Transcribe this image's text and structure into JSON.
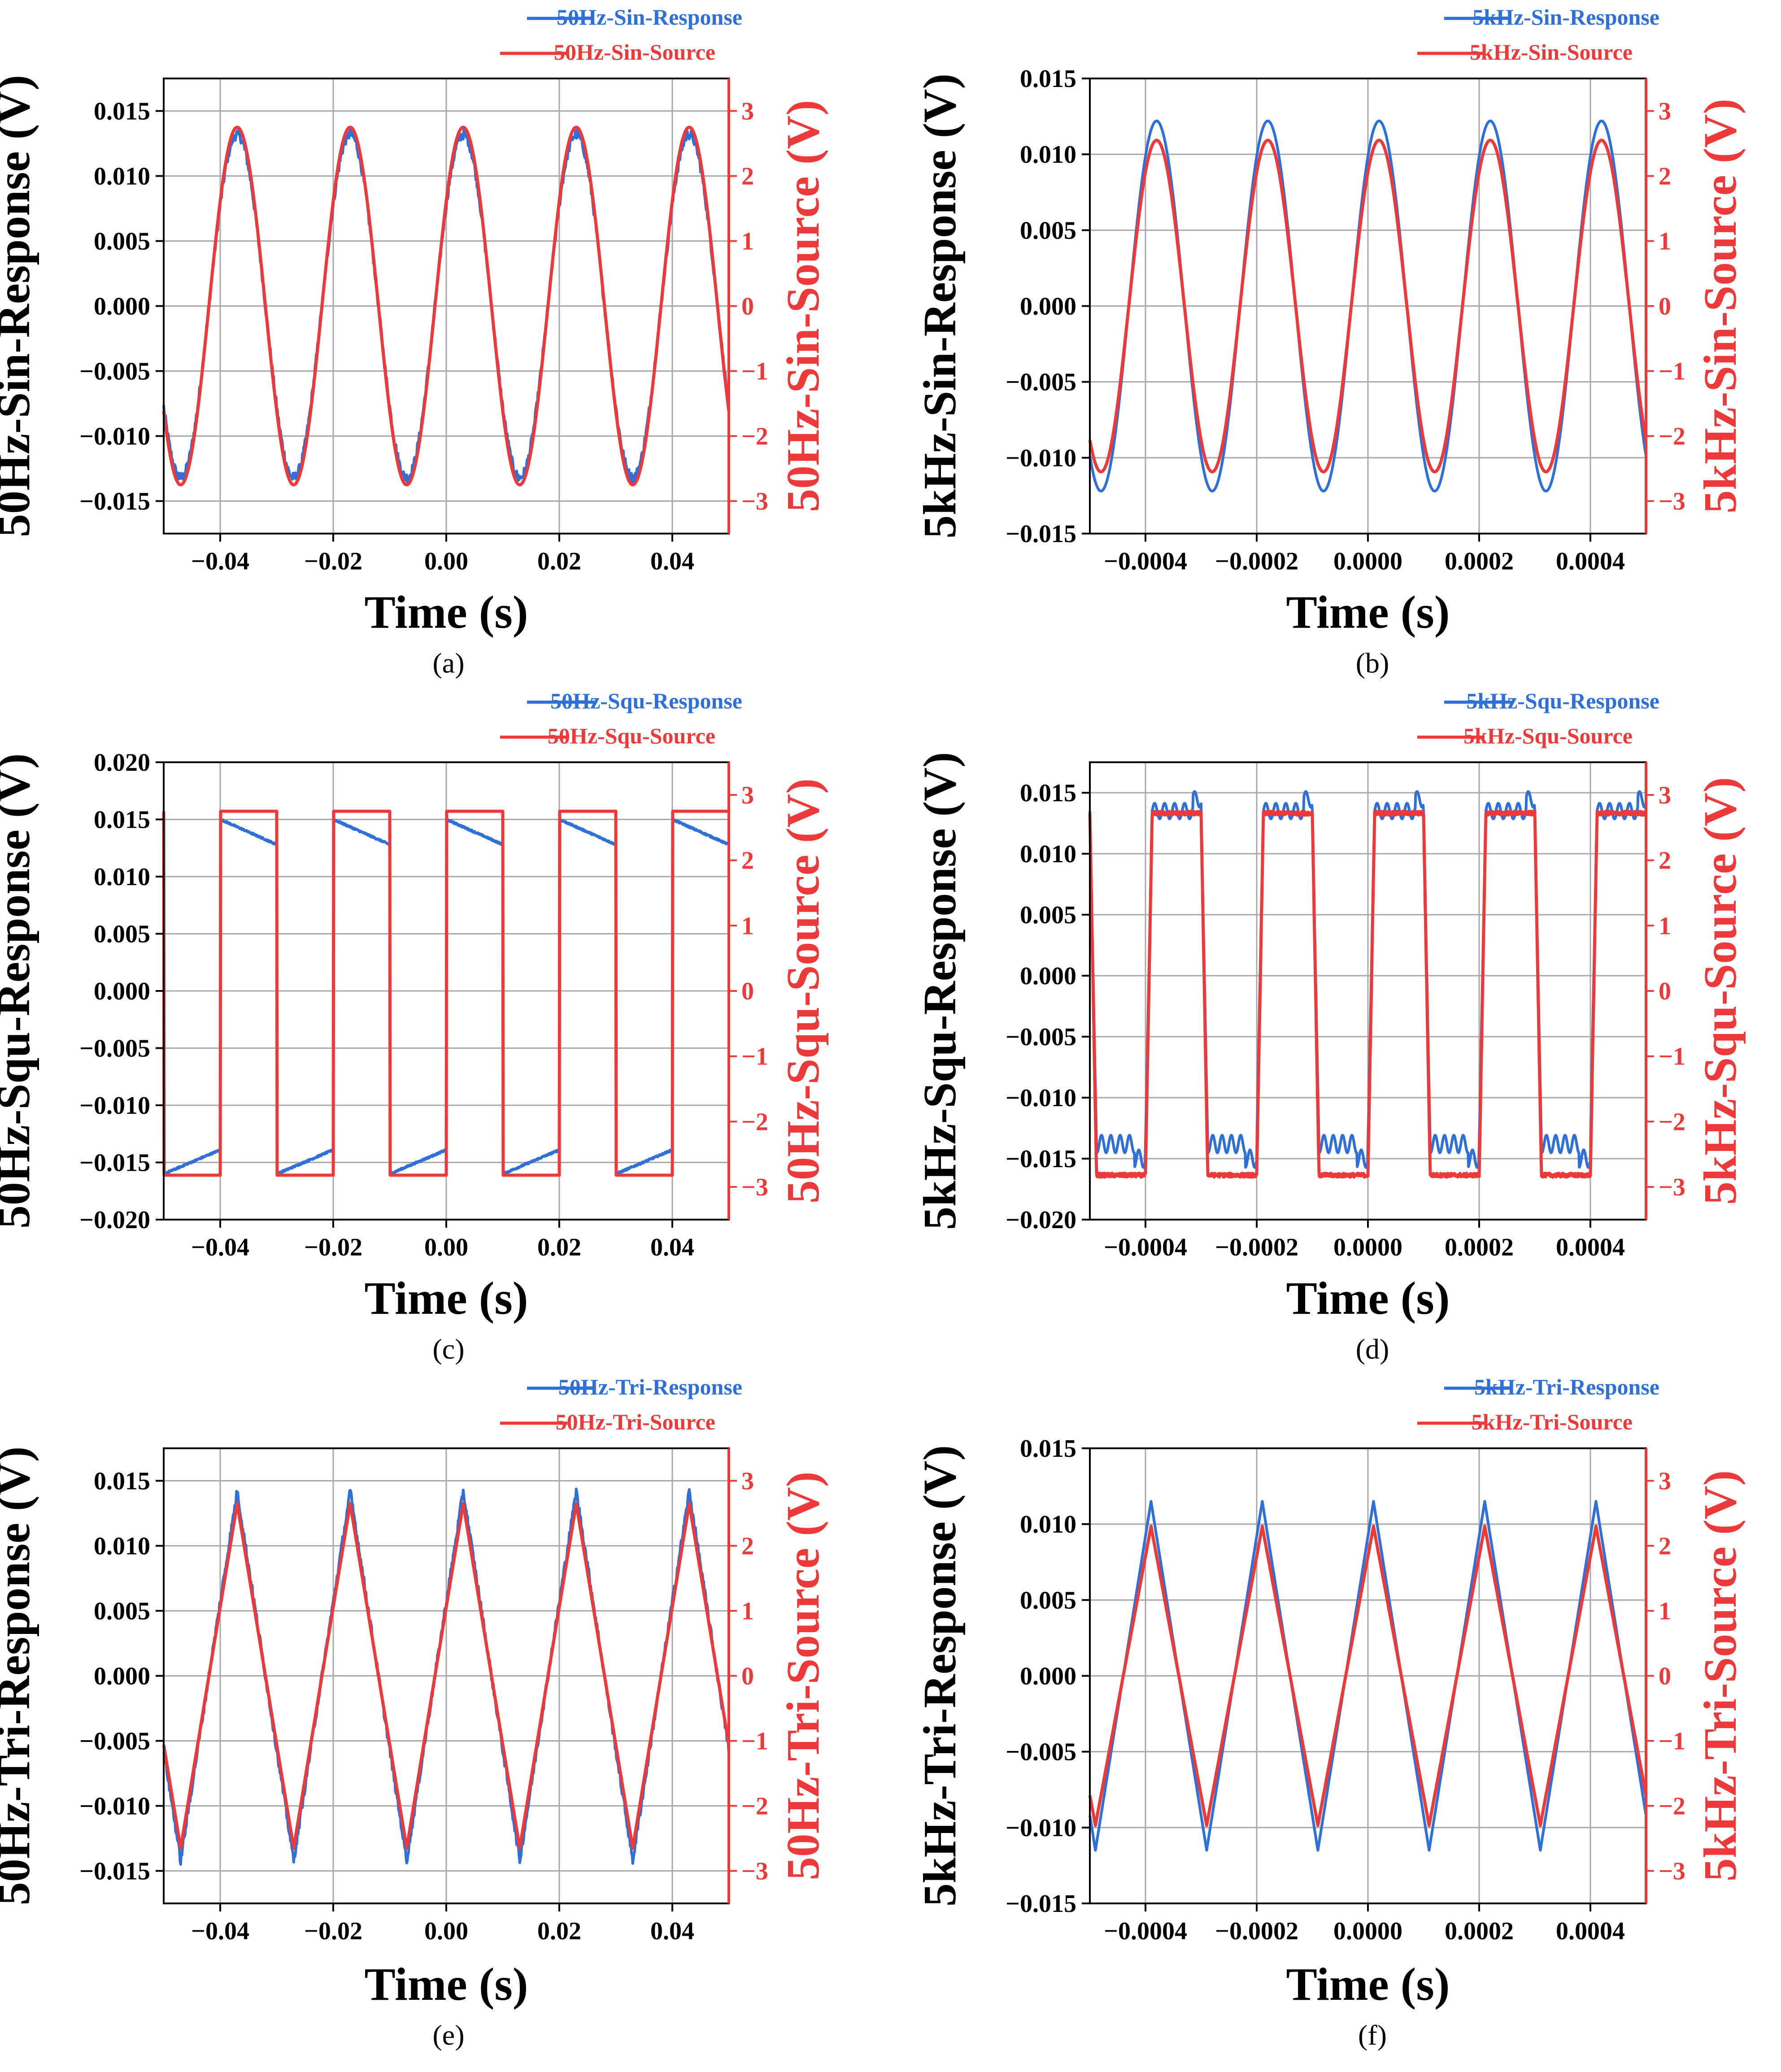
{
  "figure": {
    "colors": {
      "response": "#2e6fd8",
      "source": "#ec3a3a",
      "grid": "#a8a8a8",
      "axis": "#000000"
    }
  },
  "chart_data": [
    {
      "type": "line",
      "panel": "(a)",
      "waveform": "sine",
      "xlabel": "Time (s)",
      "ylabel": "50Hz-Sin-Response (V)",
      "y2label": "50Hz-Sin-Source (V)",
      "xlim": [
        -0.05,
        0.05
      ],
      "xticks": [
        -0.04,
        -0.02,
        0.0,
        0.02,
        0.04
      ],
      "xtick_labels": [
        "−0.04",
        "−0.02",
        "0.00",
        "0.02",
        "0.04"
      ],
      "ylim": [
        -0.0175,
        0.0175
      ],
      "yticks": [
        0.015,
        0.01,
        0.005,
        0.0,
        -0.005,
        -0.01,
        -0.015
      ],
      "ytick_labels": [
        "0.015",
        "0.010",
        "0.005",
        "0.000",
        "−0.005",
        "−0.010",
        "−0.015"
      ],
      "y2lim": [
        -3.5,
        3.5
      ],
      "y2ticks": [
        3,
        2,
        1,
        0,
        -1,
        -2,
        -3
      ],
      "y2tick_labels": [
        "3",
        "2",
        "1",
        "0",
        "−1",
        "−2",
        "−3"
      ],
      "legend_position": "top-right",
      "series": [
        {
          "name": "50Hz-Sin-Response",
          "axis": "left",
          "amplitude": 0.0132,
          "peak_times": [
            -0.037,
            -0.017,
            0.003,
            0.023,
            0.043
          ],
          "period": 0.02
        },
        {
          "name": "50Hz-Sin-Source",
          "axis": "right",
          "amplitude": 2.75,
          "peak_times": [
            -0.037,
            -0.017,
            0.003,
            0.023,
            0.043
          ],
          "period": 0.02
        }
      ]
    },
    {
      "type": "line",
      "panel": "(b)",
      "waveform": "sine",
      "xlabel": "Time (s)",
      "ylabel": "5kHz-Sin-Response (V)",
      "y2label": "5kHz-Sin-Source (V)",
      "xlim": [
        -0.0005,
        0.0005
      ],
      "xticks": [
        -0.0004,
        -0.0002,
        0.0,
        0.0002,
        0.0004
      ],
      "xtick_labels": [
        "−0.0004",
        "−0.0002",
        "0.0000",
        "0.0002",
        "0.0004"
      ],
      "ylim": [
        -0.015,
        0.015
      ],
      "yticks": [
        0.015,
        0.01,
        0.005,
        0.0,
        -0.005,
        -0.01,
        -0.015
      ],
      "ytick_labels": [
        "0.015",
        "0.010",
        "0.005",
        "0.000",
        "−0.005",
        "−0.010",
        "−0.015"
      ],
      "y2lim": [
        -3.5,
        3.5
      ],
      "y2ticks": [
        3,
        2,
        1,
        0,
        -1,
        -2,
        -3
      ],
      "y2tick_labels": [
        "3",
        "2",
        "1",
        "0",
        "−1",
        "−2",
        "−3"
      ],
      "legend_position": "top-right",
      "series": [
        {
          "name": "5kHz-Sin-Response",
          "axis": "left",
          "amplitude": 0.0122,
          "peak_times": [
            -0.00038,
            -0.00018,
            2e-05,
            0.00022,
            0.00042
          ],
          "period": 0.0002
        },
        {
          "name": "5kHz-Sin-Source",
          "axis": "right",
          "amplitude": 2.55,
          "peak_times": [
            -0.00038,
            -0.00018,
            2e-05,
            0.00022,
            0.00042
          ],
          "period": 0.0002
        }
      ]
    },
    {
      "type": "line",
      "panel": "(c)",
      "waveform": "square",
      "xlabel": "Time (s)",
      "ylabel": "50Hz-Squ-Response (V)",
      "y2label": "50Hz-Squ-Source (V)",
      "xlim": [
        -0.05,
        0.05
      ],
      "xticks": [
        -0.04,
        -0.02,
        0.0,
        0.02,
        0.04
      ],
      "xtick_labels": [
        "−0.04",
        "−0.02",
        "0.00",
        "0.02",
        "0.04"
      ],
      "ylim": [
        -0.02,
        0.02
      ],
      "yticks": [
        0.02,
        0.015,
        0.01,
        0.005,
        0.0,
        -0.005,
        -0.01,
        -0.015,
        -0.02
      ],
      "ytick_labels": [
        "0.020",
        "0.015",
        "0.010",
        "0.005",
        "0.000",
        "−0.005",
        "−0.010",
        "−0.015",
        "−0.020"
      ],
      "y2lim": [
        -3.5,
        3.5
      ],
      "y2ticks": [
        3,
        2,
        1,
        0,
        -1,
        -2,
        -3
      ],
      "y2tick_labels": [
        "3",
        "2",
        "1",
        "0",
        "−1",
        "−2",
        "−3"
      ],
      "legend_position": "top-right",
      "series": [
        {
          "name": "50Hz-Squ-Response",
          "axis": "left",
          "high_start": 0.015,
          "high_end": 0.0128,
          "low_start": -0.016,
          "low_end": -0.0139,
          "period": 0.02
        },
        {
          "name": "50Hz-Squ-Source",
          "axis": "right",
          "high": 2.75,
          "low": -2.82,
          "rising_edges": [
            -0.04,
            -0.02,
            0.0,
            0.02,
            0.04
          ],
          "falling_edges": [
            -0.03,
            -0.01,
            0.01,
            0.03
          ],
          "period": 0.02
        }
      ]
    },
    {
      "type": "line",
      "panel": "(d)",
      "waveform": "square",
      "xlabel": "Time (s)",
      "ylabel": "5kHz-Squ-Response (V)",
      "y2label": "5kHz-Squ-Source (V)",
      "xlim": [
        -0.0005,
        0.0005
      ],
      "xticks": [
        -0.0004,
        -0.0002,
        0.0,
        0.0002,
        0.0004
      ],
      "xtick_labels": [
        "−0.0004",
        "−0.0002",
        "0.0000",
        "0.0002",
        "0.0004"
      ],
      "ylim": [
        -0.02,
        0.0175
      ],
      "yticks": [
        0.015,
        0.01,
        0.005,
        0.0,
        -0.005,
        -0.01,
        -0.015,
        -0.02
      ],
      "ytick_labels": [
        "0.015",
        "0.010",
        "0.005",
        "0.000",
        "−0.005",
        "−0.010",
        "−0.015",
        "−0.020"
      ],
      "y2lim": [
        -3.5,
        3.5
      ],
      "y2ticks": [
        3,
        2,
        1,
        0,
        -1,
        -2,
        -3
      ],
      "y2tick_labels": [
        "3",
        "2",
        "1",
        "0",
        "−1",
        "−2",
        "−3"
      ],
      "legend_position": "top-right",
      "series": [
        {
          "name": "5kHz-Squ-Response",
          "axis": "left",
          "high": 0.0135,
          "low": -0.0138,
          "ripple": 0.0008,
          "period": 0.0002
        },
        {
          "name": "5kHz-Squ-Source",
          "axis": "right",
          "high": 2.72,
          "low": -2.82,
          "rising_edges": [
            -0.0004,
            -0.0002,
            0.0,
            0.0002,
            0.0004
          ],
          "period": 0.0002
        }
      ]
    },
    {
      "type": "line",
      "panel": "(e)",
      "waveform": "triangle",
      "xlabel": "Time (s)",
      "ylabel": "50Hz-Tri-Response (V)",
      "y2label": "50Hz-Tri-Source (V)",
      "xlim": [
        -0.05,
        0.05
      ],
      "xticks": [
        -0.04,
        -0.02,
        0.0,
        0.02,
        0.04
      ],
      "xtick_labels": [
        "−0.04",
        "−0.02",
        "0.00",
        "0.02",
        "0.04"
      ],
      "ylim": [
        -0.0175,
        0.0175
      ],
      "yticks": [
        0.015,
        0.01,
        0.005,
        0.0,
        -0.005,
        -0.01,
        -0.015
      ],
      "ytick_labels": [
        "0.015",
        "0.010",
        "0.005",
        "0.000",
        "−0.005",
        "−0.010",
        "−0.015"
      ],
      "y2lim": [
        -3.5,
        3.5
      ],
      "y2ticks": [
        3,
        2,
        1,
        0,
        -1,
        -2,
        -3
      ],
      "y2tick_labels": [
        "3",
        "2",
        "1",
        "0",
        "−1",
        "−2",
        "−3"
      ],
      "legend_position": "top-right",
      "series": [
        {
          "name": "50Hz-Tri-Response",
          "axis": "left",
          "amplitude": 0.0142,
          "peak_times": [
            -0.037,
            -0.017,
            0.003,
            0.023,
            0.043
          ],
          "period": 0.02
        },
        {
          "name": "50Hz-Tri-Source",
          "axis": "right",
          "amplitude": 2.65,
          "peak_times": [
            -0.037,
            -0.017,
            0.003,
            0.023,
            0.043
          ],
          "period": 0.02
        }
      ]
    },
    {
      "type": "line",
      "panel": "(f)",
      "waveform": "triangle",
      "xlabel": "Time (s)",
      "ylabel": "5kHz-Tri-Response (V)",
      "y2label": "5kHz-Tri-Source (V)",
      "xlim": [
        -0.0005,
        0.0005
      ],
      "xticks": [
        -0.0004,
        -0.0002,
        0.0,
        0.0002,
        0.0004
      ],
      "xtick_labels": [
        "−0.0004",
        "−0.0002",
        "0.0000",
        "0.0002",
        "0.0004"
      ],
      "ylim": [
        -0.015,
        0.015
      ],
      "yticks": [
        0.015,
        0.01,
        0.005,
        0.0,
        -0.005,
        -0.01,
        -0.015
      ],
      "ytick_labels": [
        "0.015",
        "0.010",
        "0.005",
        "0.000",
        "−0.005",
        "−0.010",
        "−0.015"
      ],
      "y2lim": [
        -3.5,
        3.5
      ],
      "y2ticks": [
        3,
        2,
        1,
        0,
        -1,
        -2,
        -3
      ],
      "y2tick_labels": [
        "3",
        "2",
        "1",
        "0",
        "−1",
        "−2",
        "−3"
      ],
      "legend_position": "top-right",
      "series": [
        {
          "name": "5kHz-Tri-Response",
          "axis": "left",
          "amplitude": 0.0115,
          "peak_times": [
            -0.00039,
            -0.00019,
            1e-05,
            0.00021,
            0.00041
          ],
          "period": 0.0002
        },
        {
          "name": "5kHz-Tri-Source",
          "axis": "right",
          "amplitude": 2.3,
          "peak_times": [
            -0.00039,
            -0.00019,
            1e-05,
            0.00021,
            0.00041
          ],
          "period": 0.0002
        }
      ]
    }
  ]
}
